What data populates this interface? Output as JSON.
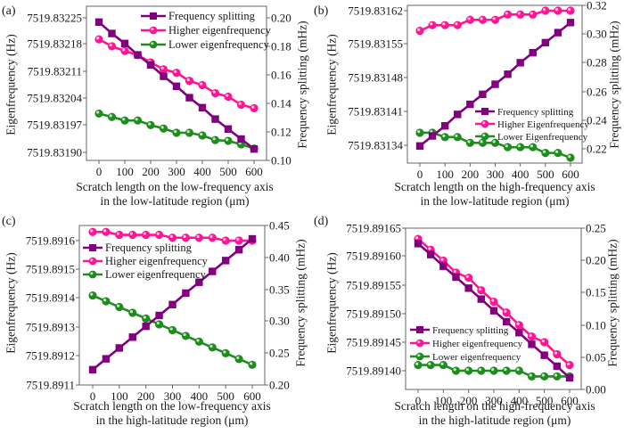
{
  "chart_data": [
    {
      "type": "line",
      "panel_label": "(a)",
      "xlabel_line1": "Scratch length on the low-frequency axis",
      "xlabel_line2": "in the low-latitude region (μm)",
      "ylabel_left": "Eigenfrequency (Hz)",
      "ylabel_right": "Frequency splitting (mHz)",
      "x": [
        0,
        50,
        100,
        150,
        200,
        250,
        300,
        350,
        400,
        450,
        500,
        550,
        600
      ],
      "x_ticks": [
        0,
        100,
        200,
        300,
        400,
        500,
        600
      ],
      "xlim": [
        0,
        600
      ],
      "ylim_left": [
        7519.8319,
        7519.83225
      ],
      "yticks_left": [
        "7519.83190",
        "7519.83197",
        "7519.83204",
        "7519.83211",
        "7519.83218",
        "7519.83225"
      ],
      "ylim_right": [
        0.1,
        0.2
      ],
      "yticks_right": [
        "0.10",
        "0.12",
        "0.14",
        "0.16",
        "0.18",
        "0.20"
      ],
      "legend_position": "top-right",
      "series": [
        {
          "name": "Frequency splitting",
          "axis": "right",
          "marker": "square",
          "color": "#800080",
          "values": [
            0.197,
            0.189,
            0.182,
            0.174,
            0.167,
            0.159,
            0.152,
            0.144,
            0.137,
            0.129,
            0.122,
            0.115,
            0.108
          ]
        },
        {
          "name": "Higher eigenfrequency",
          "axis": "left",
          "marker": "circle",
          "color": "#ff1493",
          "values": [
            7519.832194,
            7519.832176,
            7519.832164,
            7519.832153,
            7519.832134,
            7519.832116,
            7519.832107,
            7519.832086,
            7519.832075,
            7519.832054,
            7519.832045,
            7519.832024,
            7519.832015
          ]
        },
        {
          "name": "Lower eigenfrequency",
          "axis": "left",
          "marker": "circle",
          "color": "#1e8c1e",
          "values": [
            7519.832001,
            7519.831992,
            7519.831983,
            7519.831983,
            7519.831971,
            7519.831962,
            7519.831951,
            7519.831951,
            7519.831944,
            7519.831932,
            7519.83193,
            7519.831921,
            7519.83191
          ]
        }
      ]
    },
    {
      "type": "line",
      "panel_label": "(b)",
      "xlabel_line1": "Scratch length on the high-frequency axis",
      "xlabel_line2": "in the low-latitude region (μm)",
      "ylabel_left": "Eigenfrequency (Hz)",
      "ylabel_right": "Frequency splitting (mHz)",
      "x": [
        0,
        50,
        100,
        150,
        200,
        250,
        300,
        350,
        400,
        450,
        500,
        550,
        600
      ],
      "x_ticks": [
        0,
        100,
        200,
        300,
        400,
        500,
        600
      ],
      "xlim": [
        0,
        600
      ],
      "ylim_left": [
        7519.8313,
        7519.83164
      ],
      "yticks_left": [
        "7519.83134",
        "7519.83141",
        "7519.83148",
        "7519.83155",
        "7519.83162"
      ],
      "ylim_right": [
        0.21,
        0.32
      ],
      "yticks_right": [
        "0.22",
        "0.24",
        "0.26",
        "0.28",
        "0.30",
        "0.32"
      ],
      "legend_position": "bottom-right",
      "series": [
        {
          "name": "Frequency splitting",
          "axis": "right",
          "marker": "square",
          "color": "#800080",
          "values": [
            0.222,
            0.229,
            0.236,
            0.244,
            0.251,
            0.258,
            0.265,
            0.272,
            0.28,
            0.287,
            0.294,
            0.301,
            0.308
          ]
        },
        {
          "name": "Higher Eigenfrequency",
          "axis": "left",
          "marker": "circle",
          "color": "#ff1493",
          "values": [
            7519.831578,
            7519.83159,
            7519.83159,
            7519.83159,
            7519.831601,
            7519.831601,
            7519.831601,
            7519.831612,
            7519.831612,
            7519.831612,
            7519.83162,
            7519.83162,
            7519.83162
          ]
        },
        {
          "name": "Lower Eigenfrequency",
          "axis": "left",
          "marker": "circle",
          "color": "#1e8c1e",
          "values": [
            7519.831366,
            7519.831366,
            7519.831357,
            7519.831357,
            7519.831345,
            7519.831345,
            7519.831345,
            7519.831336,
            7519.831336,
            7519.831336,
            7519.831324,
            7519.831324,
            7519.831314
          ]
        }
      ]
    },
    {
      "type": "line",
      "panel_label": "(c)",
      "xlabel_line1": "Scratch length on the low-frequency axis",
      "xlabel_line2": "in the high-latitude region  (μm)",
      "ylabel_left": "Eigenfrequency (Hz)",
      "ylabel_right": "Frequency splitting (mHz)",
      "x": [
        0,
        50,
        100,
        150,
        200,
        250,
        300,
        350,
        400,
        450,
        500,
        550,
        600
      ],
      "x_ticks": [
        0,
        100,
        200,
        300,
        400,
        500,
        600
      ],
      "xlim": [
        0,
        600
      ],
      "ylim_left": [
        7519.8911,
        7519.89165
      ],
      "yticks_left": [
        "7519.8911",
        "7519.8912",
        "7519.8913",
        "7519.8914",
        "7519.8915",
        "7519.8916"
      ],
      "ylim_right": [
        0.2,
        0.45
      ],
      "yticks_right": [
        "0.20",
        "0.25",
        "0.30",
        "0.35",
        "0.40",
        "0.45"
      ],
      "legend_position": "top-left",
      "series": [
        {
          "name": "Frequency splitting",
          "axis": "right",
          "marker": "square",
          "color": "#800080",
          "values": [
            0.224,
            0.241,
            0.258,
            0.275,
            0.292,
            0.309,
            0.326,
            0.344,
            0.361,
            0.378,
            0.395,
            0.412,
            0.429
          ]
        },
        {
          "name": "Higher eigenfrequency",
          "axis": "left",
          "marker": "circle",
          "color": "#ff1493",
          "values": [
            7519.89163,
            7519.89163,
            7519.89162,
            7519.89162,
            7519.89162,
            7519.89162,
            7519.89161,
            7519.89161,
            7519.89161,
            7519.89161,
            7519.8916,
            7519.8916,
            7519.8916
          ]
        },
        {
          "name": "Lower eigenfrequency",
          "axis": "left",
          "marker": "circle",
          "color": "#1e8c1e",
          "values": [
            7519.89141,
            7519.89139,
            7519.89137,
            7519.89135,
            7519.89133,
            7519.89131,
            7519.89129,
            7519.89127,
            7519.89125,
            7519.89123,
            7519.89121,
            7519.89119,
            7519.89117
          ]
        }
      ]
    },
    {
      "type": "line",
      "panel_label": "(d)",
      "xlabel_line1": "Scratch length on the high-frequency axis",
      "xlabel_line2": "in the high-latitude region (μm)",
      "ylabel_left": "Eigenfrequency (Hz)",
      "ylabel_right": "Frequency splitting (mHz)",
      "x": [
        0,
        50,
        100,
        150,
        200,
        250,
        300,
        350,
        400,
        450,
        500,
        550,
        600
      ],
      "x_ticks": [
        0,
        100,
        200,
        300,
        400,
        500,
        600
      ],
      "xlim": [
        0,
        600
      ],
      "ylim_left": [
        7519.891377,
        7519.89165
      ],
      "yticks_left": [
        "7519.89140",
        "7519.89145",
        "7519.89150",
        "7519.89155",
        "7519.89160",
        "7519.89165"
      ],
      "ylim_right": [
        0.0,
        0.25
      ],
      "yticks_right": [
        "0.00",
        "0.05",
        "0.10",
        "0.15",
        "0.20",
        "0.25"
      ],
      "legend_position": "bottom-left",
      "series": [
        {
          "name": "Frequency splitting",
          "axis": "right",
          "marker": "square",
          "color": "#800080",
          "values": [
            0.226,
            0.209,
            0.191,
            0.174,
            0.157,
            0.14,
            0.122,
            0.105,
            0.088,
            0.07,
            0.053,
            0.036,
            0.018
          ]
        },
        {
          "name": "Higher eigenfrequency",
          "axis": "left",
          "marker": "circle",
          "color": "#ff1493",
          "values": [
            7519.891631,
            7519.891612,
            7519.891593,
            7519.891572,
            7519.891563,
            7519.891541,
            7519.891521,
            7519.891502,
            7519.89148,
            7519.89146,
            7519.89145,
            7519.891429,
            7519.89141
          ]
        },
        {
          "name": "Lower eigenfrequency",
          "axis": "left",
          "marker": "circle",
          "color": "#1e8c1e",
          "values": [
            7519.89141,
            7519.89141,
            7519.89141,
            7519.8914,
            7519.8914,
            7519.8914,
            7519.8914,
            7519.8914,
            7519.8914,
            7519.89139,
            7519.89139,
            7519.89139,
            7519.89139
          ]
        }
      ]
    }
  ]
}
